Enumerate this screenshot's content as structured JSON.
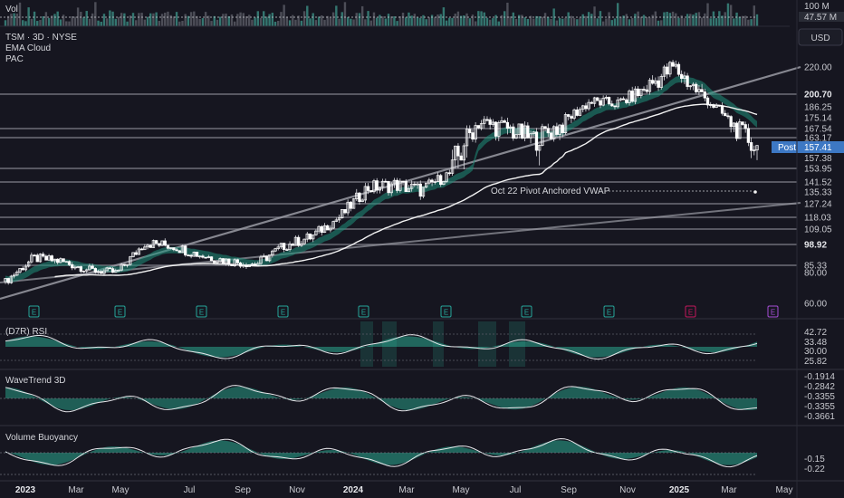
{
  "header": {
    "vol_label": "Vol",
    "symbol": "TSM · 3D · NYSE",
    "indicator_1": "EMA Cloud",
    "indicator_2": "PAC",
    "currency_button": "USD"
  },
  "vol_scale": [
    "100 M",
    "47.57 M"
  ],
  "price_tags": {
    "post_label": "Post",
    "post_value": "157.41",
    "last_value": "157.38"
  },
  "vwap_label": "Oct 22 Pivot Anchored VWAP",
  "earnings_marker": "E",
  "rsi_title": "(D7R) RSI",
  "rsi_scale": [
    "42.72",
    "33.48",
    "30.00",
    "25.82"
  ],
  "wavetrend_title": "WaveTrend 3D",
  "wavetrend_scale": [
    "-0.1914",
    "-0.2842",
    "-0.3355",
    "-0.3355",
    "-0.3661"
  ],
  "buoyancy_title": "Volume Buoyancy",
  "buoyancy_scale": [
    "-0.15",
    "-0.22"
  ],
  "x_axis": [
    "2023",
    "Mar",
    "May",
    "Jul",
    "Sep",
    "Nov",
    "2024",
    "Mar",
    "May",
    "Jul",
    "Sep",
    "Nov",
    "2025",
    "Mar",
    "May"
  ],
  "chart_data": {
    "type": "candlestick",
    "title": "TSM · 3D · NYSE",
    "xlabel": "",
    "ylabel": "",
    "ylim": [
      55,
      232
    ],
    "y_ticks": [
      220.0,
      200.7,
      186.25,
      175.14,
      167.54,
      163.17,
      157.41,
      157.38,
      153.95,
      141.52,
      135.33,
      127.24,
      118.03,
      109.05,
      98.92,
      85.33,
      80.0,
      60.0
    ],
    "horizontal_levels": [
      200.7,
      167.54,
      163.17,
      153.95,
      141.52,
      127.24,
      118.03,
      109.05,
      98.92,
      85.33
    ],
    "x_ticks": [
      "2023",
      "Mar",
      "May",
      "Jul",
      "Sep",
      "Nov",
      "2024",
      "Mar",
      "May",
      "Jul",
      "Sep",
      "Nov",
      "2025",
      "Mar",
      "May"
    ],
    "close_path": [
      {
        "x": "2023-01",
        "y": 74
      },
      {
        "x": "2023-02",
        "y": 90
      },
      {
        "x": "2023-03",
        "y": 88
      },
      {
        "x": "2023-04",
        "y": 82
      },
      {
        "x": "2023-05",
        "y": 80
      },
      {
        "x": "2023-06",
        "y": 100
      },
      {
        "x": "2023-07",
        "y": 98
      },
      {
        "x": "2023-08",
        "y": 92
      },
      {
        "x": "2023-09",
        "y": 88
      },
      {
        "x": "2023-10",
        "y": 86
      },
      {
        "x": "2023-11",
        "y": 98
      },
      {
        "x": "2023-12",
        "y": 104
      },
      {
        "x": "2024-01",
        "y": 118
      },
      {
        "x": "2024-02",
        "y": 138
      },
      {
        "x": "2024-03",
        "y": 140
      },
      {
        "x": "2024-04",
        "y": 136
      },
      {
        "x": "2024-05",
        "y": 150
      },
      {
        "x": "2024-06",
        "y": 172
      },
      {
        "x": "2024-07",
        "y": 168
      },
      {
        "x": "2024-08",
        "y": 162
      },
      {
        "x": "2024-09",
        "y": 170
      },
      {
        "x": "2024-10",
        "y": 192
      },
      {
        "x": "2024-11",
        "y": 190
      },
      {
        "x": "2024-12",
        "y": 205
      },
      {
        "x": "2025-01",
        "y": 220
      },
      {
        "x": "2025-02",
        "y": 200
      },
      {
        "x": "2025-03",
        "y": 172
      },
      {
        "x": "2025-04",
        "y": 157.38
      }
    ],
    "vwap_label": "Oct 22 Pivot Anchored VWAP",
    "earnings_events": [
      "2023-01",
      "2023-04",
      "2023-07",
      "2023-10",
      "2024-01",
      "2024-04",
      "2024-07",
      "2024-10",
      "2025-01",
      "2025-04"
    ],
    "panes": [
      {
        "name": "(D7R) RSI",
        "scale": [
          42.72,
          33.48,
          30.0,
          25.82
        ]
      },
      {
        "name": "WaveTrend 3D",
        "scale": [
          -0.1914,
          -0.2842,
          -0.3355,
          -0.3355,
          -0.3661
        ]
      },
      {
        "name": "Volume Buoyancy",
        "scale": [
          -0.15,
          -0.22
        ]
      }
    ],
    "colors": {
      "up": "#26a69a",
      "cloud": "#1f8f7a",
      "post": "#3d78c4",
      "earnings": "#26a69a",
      "earnings_next": "#c2185b",
      "background": "#161620"
    },
    "grid": false
  }
}
